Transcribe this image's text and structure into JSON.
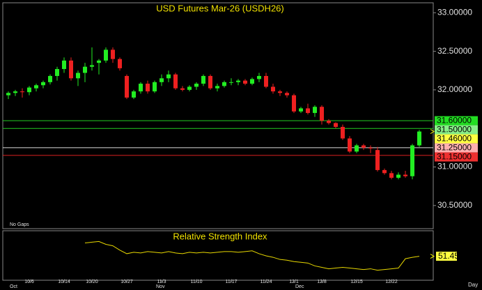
{
  "chart_data": {
    "type": "candlestick",
    "title": "USD Futures Mar-26 (USDH26)",
    "note": "No Gaps",
    "period": "Day",
    "categories": [
      null,
      null,
      null,
      "10/6",
      null,
      null,
      null,
      null,
      "10/14",
      null,
      null,
      null,
      "10/20",
      null,
      null,
      null,
      null,
      "10/27",
      null,
      null,
      null,
      null,
      "11/3",
      null,
      null,
      null,
      null,
      "11/10",
      null,
      null,
      null,
      null,
      "11/17",
      null,
      null,
      null,
      null,
      "11/24",
      null,
      null,
      null,
      "12/1",
      null,
      null,
      null,
      "12/8",
      null,
      null,
      null,
      null,
      "12/15",
      null,
      null,
      null,
      null,
      "12/22",
      null,
      null,
      null,
      null
    ],
    "months": [
      "Oct",
      null,
      null,
      null,
      null,
      null,
      null,
      null,
      null,
      null,
      null,
      null,
      null,
      null,
      null,
      null,
      null,
      null,
      null,
      null,
      null,
      "Nov",
      null,
      null,
      null,
      null,
      null,
      null,
      null,
      null,
      null,
      null,
      null,
      null,
      null,
      null,
      null,
      null,
      null,
      null,
      null,
      "Dec",
      null,
      null,
      null,
      null,
      null,
      null,
      null,
      null,
      null,
      null,
      null,
      null,
      null,
      null,
      null,
      null,
      null,
      null
    ],
    "open": [
      31.93,
      31.96,
      31.98,
      31.97,
      32.02,
      32.06,
      32.1,
      32.18,
      32.27,
      32.38,
      32.15,
      32.22,
      32.3,
      32.35,
      32.38,
      32.52,
      32.4,
      32.18,
      31.9,
      31.98,
      32.08,
      31.98,
      32.1,
      32.15,
      32.2,
      32.02,
      32.0,
      32.04,
      32.08,
      32.18,
      32.02,
      32.05,
      32.1,
      32.1,
      32.12,
      32.08,
      32.14,
      32.18,
      32.04,
      31.98,
      31.96,
      31.93,
      31.72,
      31.76,
      31.7,
      31.78,
      31.6,
      31.57,
      31.52,
      31.37,
      31.2,
      31.28,
      31.25,
      31.22,
      30.96,
      30.92,
      30.86,
      30.9,
      30.88,
      31.28
    ],
    "high": [
      31.98,
      32.0,
      32.02,
      32.05,
      32.08,
      32.12,
      32.2,
      32.3,
      32.42,
      32.42,
      32.25,
      32.35,
      32.55,
      32.4,
      32.55,
      32.55,
      32.42,
      32.2,
      32.0,
      32.1,
      32.12,
      32.12,
      32.2,
      32.25,
      32.22,
      32.05,
      32.06,
      32.1,
      32.2,
      32.2,
      32.08,
      32.12,
      32.15,
      32.14,
      32.14,
      32.16,
      32.22,
      32.22,
      32.08,
      32.0,
      31.98,
      31.95,
      31.78,
      31.82,
      31.8,
      31.8,
      31.62,
      31.58,
      31.55,
      31.4,
      31.3,
      31.3,
      31.28,
      31.26,
      30.98,
      30.95,
      30.93,
      30.95,
      31.3,
      31.48
    ],
    "low": [
      31.88,
      31.92,
      31.9,
      31.93,
      31.98,
      32.02,
      32.07,
      32.12,
      32.22,
      32.12,
      32.05,
      32.1,
      32.25,
      32.2,
      32.35,
      32.35,
      32.25,
      31.88,
      31.88,
      31.95,
      31.95,
      31.96,
      32.05,
      32.1,
      32.0,
      31.98,
      31.98,
      32.0,
      32.05,
      32.0,
      31.98,
      32.03,
      32.06,
      32.06,
      32.06,
      32.06,
      32.1,
      32.02,
      31.95,
      31.92,
      31.9,
      31.7,
      31.7,
      31.68,
      31.65,
      31.55,
      31.55,
      31.5,
      31.35,
      31.18,
      31.18,
      31.22,
      31.18,
      30.94,
      30.9,
      30.84,
      30.84,
      30.86,
      30.84,
      31.26
    ],
    "close": [
      31.96,
      31.98,
      31.97,
      32.03,
      32.06,
      32.1,
      32.18,
      32.27,
      32.38,
      32.15,
      32.22,
      32.3,
      32.32,
      32.38,
      32.52,
      32.4,
      32.28,
      31.9,
      31.98,
      32.08,
      31.98,
      32.1,
      32.15,
      32.2,
      32.02,
      32.0,
      32.04,
      32.08,
      32.18,
      32.02,
      32.05,
      32.1,
      32.1,
      32.12,
      32.08,
      32.14,
      32.18,
      32.04,
      31.98,
      31.96,
      31.93,
      31.72,
      31.76,
      31.7,
      31.78,
      31.6,
      31.57,
      31.52,
      31.37,
      31.2,
      31.28,
      31.25,
      31.24,
      30.96,
      30.92,
      30.86,
      30.9,
      30.88,
      31.28,
      31.46
    ],
    "up_color": "#22ee22",
    "down_color": "#ee2020",
    "ylim": [
      30.2,
      33.12
    ],
    "yticks": [
      {
        "value": 30.5,
        "label": "30.50000"
      },
      {
        "value": 31,
        "label": "31.00000"
      },
      {
        "value": 32,
        "label": "32.00000"
      },
      {
        "value": 32.5,
        "label": "32.50000"
      },
      {
        "value": 33,
        "label": "33.00000"
      }
    ],
    "price_lines": [
      {
        "value": 31.6,
        "label": "31.60000",
        "color": "#22cc22",
        "box": "#22dd22"
      },
      {
        "value": 31.5,
        "label": "31.50000",
        "color": "#22cc22",
        "box": "#88ee88"
      },
      {
        "value": 31.46,
        "label": "31.46000",
        "color": null,
        "box": "#ffff40"
      },
      {
        "value": 31.25,
        "label": "31.25000",
        "color": "#dddddd",
        "box": "#ffb0b0"
      },
      {
        "value": 31.15,
        "label": "31.15000",
        "color": "#dd2020",
        "box": "#ee3030"
      }
    ],
    "rsi": {
      "title": "Relative Strength Index",
      "color": "#e8d800",
      "ylim": [
        20,
        85
      ],
      "values": [
        null,
        null,
        null,
        null,
        null,
        null,
        null,
        null,
        null,
        null,
        null,
        70,
        71,
        72,
        68,
        66,
        60,
        55,
        57,
        56,
        58,
        57,
        56,
        58,
        56,
        55,
        57,
        56,
        57,
        56,
        57,
        58,
        58,
        57,
        58,
        59,
        55,
        52,
        50,
        47,
        46,
        44,
        43,
        42,
        38,
        36,
        34,
        35,
        36,
        35,
        34,
        33,
        34,
        32,
        33,
        34,
        35,
        48,
        50,
        51.45
      ]
    }
  }
}
